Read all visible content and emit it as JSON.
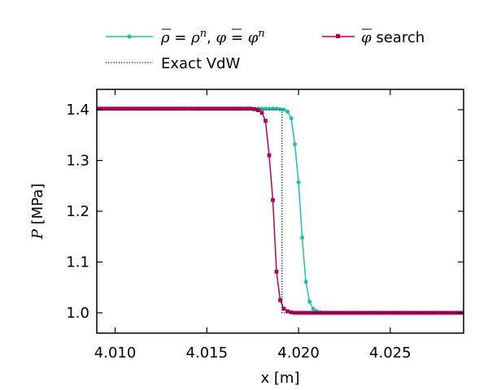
{
  "chart_data": {
    "type": "line",
    "title": "",
    "xlabel": "x [m]",
    "ylabel_symbol": "P",
    "ylabel_unit": "[MPa]",
    "xlim": [
      4.009,
      4.029
    ],
    "ylim": [
      0.96,
      1.44
    ],
    "x_ticks": [
      4.01,
      4.015,
      4.02,
      4.025
    ],
    "x_tick_labels": [
      "4.010",
      "4.015",
      "4.020",
      "4.025"
    ],
    "y_ticks": [
      1.0,
      1.1,
      1.2,
      1.3,
      1.4
    ],
    "y_tick_labels": [
      "1.0",
      "1.1",
      "1.2",
      "1.3",
      "1.4"
    ],
    "grid": false,
    "legend_position": "top",
    "series": [
      {
        "name": "ρ̄ = ρⁿ, φ̄ = φⁿ",
        "legend": {
          "rho_bar": "ρ",
          "rho_rhs": "ρ",
          "phi_bar": "φ",
          "phi_rhs": "φ",
          "sup": "n",
          "eq": " = ",
          "sep": ",  "
        },
        "color": "#1fbfb0",
        "marker": "circle",
        "x": [
          4.009,
          4.0092,
          4.0094,
          4.0096,
          4.0098,
          4.01,
          4.0102,
          4.0104,
          4.0106,
          4.0108,
          4.011,
          4.0112,
          4.0114,
          4.0116,
          4.0118,
          4.012,
          4.0122,
          4.0124,
          4.0126,
          4.0128,
          4.013,
          4.0132,
          4.0134,
          4.0136,
          4.0138,
          4.014,
          4.0142,
          4.0144,
          4.0146,
          4.0148,
          4.015,
          4.0152,
          4.0154,
          4.0156,
          4.0158,
          4.016,
          4.0162,
          4.0164,
          4.0166,
          4.0168,
          4.017,
          4.0172,
          4.0174,
          4.0176,
          4.0178,
          4.018,
          4.0182,
          4.0184,
          4.0186,
          4.0188,
          4.019,
          4.0192,
          4.0194,
          4.0196,
          4.0198,
          4.02,
          4.0202,
          4.0204,
          4.0206,
          4.0208,
          4.021,
          4.0212,
          4.0214,
          4.0216,
          4.0218,
          4.022,
          4.0222,
          4.0224,
          4.0226,
          4.0228,
          4.023,
          4.0232,
          4.0234,
          4.0236,
          4.0238,
          4.024,
          4.0242,
          4.0244,
          4.0246,
          4.0248,
          4.025,
          4.0252,
          4.0254,
          4.0256,
          4.0258,
          4.026,
          4.0262,
          4.0264,
          4.0266,
          4.0268,
          4.027,
          4.0272,
          4.0274,
          4.0276,
          4.0278,
          4.028,
          4.0282,
          4.0284,
          4.0286,
          4.0288,
          4.029
        ],
        "y": [
          1.402,
          1.402,
          1.402,
          1.402,
          1.402,
          1.402,
          1.402,
          1.402,
          1.402,
          1.402,
          1.402,
          1.402,
          1.402,
          1.402,
          1.402,
          1.402,
          1.402,
          1.402,
          1.402,
          1.402,
          1.402,
          1.402,
          1.402,
          1.402,
          1.402,
          1.402,
          1.402,
          1.402,
          1.402,
          1.402,
          1.402,
          1.402,
          1.402,
          1.402,
          1.402,
          1.402,
          1.402,
          1.402,
          1.402,
          1.402,
          1.402,
          1.402,
          1.402,
          1.402,
          1.402,
          1.402,
          1.402,
          1.402,
          1.402,
          1.402,
          1.401,
          1.4,
          1.396,
          1.383,
          1.332,
          1.257,
          1.148,
          1.061,
          1.022,
          1.008,
          1.003,
          1.001,
          1.0,
          1.0,
          1.0,
          1.0,
          1.0,
          1.0,
          1.0,
          1.0,
          1.0,
          1.0,
          1.0,
          1.0,
          1.0,
          1.0,
          1.0,
          1.0,
          1.0,
          1.0,
          1.0,
          1.0,
          1.0,
          1.0,
          1.0,
          1.0,
          1.0,
          1.0,
          1.0,
          1.0,
          1.0,
          1.0,
          1.0,
          1.0,
          1.0,
          1.0,
          1.0,
          1.0,
          1.0,
          1.0,
          1.0
        ]
      },
      {
        "name": "φ̄ search",
        "legend": {
          "phi_bar": "φ",
          "text": " search"
        },
        "color": "#b5005f",
        "marker": "square",
        "x": [
          4.009,
          4.0092,
          4.0094,
          4.0096,
          4.0098,
          4.01,
          4.0102,
          4.0104,
          4.0106,
          4.0108,
          4.011,
          4.0112,
          4.0114,
          4.0116,
          4.0118,
          4.012,
          4.0122,
          4.0124,
          4.0126,
          4.0128,
          4.013,
          4.0132,
          4.0134,
          4.0136,
          4.0138,
          4.014,
          4.0142,
          4.0144,
          4.0146,
          4.0148,
          4.015,
          4.0152,
          4.0154,
          4.0156,
          4.0158,
          4.016,
          4.0162,
          4.0164,
          4.0166,
          4.0168,
          4.017,
          4.0172,
          4.0174,
          4.0176,
          4.0178,
          4.018,
          4.0182,
          4.0184,
          4.0186,
          4.0188,
          4.019,
          4.0192,
          4.0194,
          4.0196,
          4.0198,
          4.02,
          4.0202,
          4.0204,
          4.0206,
          4.0208,
          4.021,
          4.0212,
          4.0214,
          4.0216,
          4.0218,
          4.022,
          4.0222,
          4.0224,
          4.0226,
          4.0228,
          4.023,
          4.0232,
          4.0234,
          4.0236,
          4.0238,
          4.024,
          4.0242,
          4.0244,
          4.0246,
          4.0248,
          4.025,
          4.0252,
          4.0254,
          4.0256,
          4.0258,
          4.026,
          4.0262,
          4.0264,
          4.0266,
          4.0268,
          4.027,
          4.0272,
          4.0274,
          4.0276,
          4.0278,
          4.028,
          4.0282,
          4.0284,
          4.0286,
          4.0288,
          4.029
        ],
        "y": [
          1.402,
          1.402,
          1.402,
          1.402,
          1.402,
          1.402,
          1.402,
          1.402,
          1.402,
          1.402,
          1.402,
          1.402,
          1.402,
          1.402,
          1.402,
          1.402,
          1.402,
          1.402,
          1.402,
          1.402,
          1.402,
          1.402,
          1.402,
          1.402,
          1.402,
          1.402,
          1.402,
          1.402,
          1.402,
          1.402,
          1.402,
          1.402,
          1.402,
          1.402,
          1.402,
          1.402,
          1.402,
          1.402,
          1.402,
          1.402,
          1.402,
          1.402,
          1.402,
          1.401,
          1.399,
          1.394,
          1.378,
          1.31,
          1.222,
          1.081,
          1.025,
          1.008,
          1.003,
          1.001,
          1.0,
          1.0,
          1.0,
          1.0,
          1.0,
          1.0,
          1.0,
          1.0,
          1.0,
          1.0,
          1.0,
          1.0,
          1.0,
          1.0,
          1.0,
          1.0,
          1.0,
          1.0,
          1.0,
          1.0,
          1.0,
          1.0,
          1.0,
          1.0,
          1.0,
          1.0,
          1.0,
          1.0,
          1.0,
          1.0,
          1.0,
          1.0,
          1.0,
          1.0,
          1.0,
          1.0,
          1.0,
          1.0,
          1.0,
          1.0,
          1.0,
          1.0,
          1.0,
          1.0,
          1.0,
          1.0,
          1.0
        ]
      },
      {
        "name": "Exact VdW",
        "color": "#000000",
        "marker": "none",
        "dash": "dotted",
        "x": [
          4.009,
          4.0191,
          4.0191,
          4.029
        ],
        "y": [
          1.4,
          1.4,
          1.0,
          1.0
        ]
      }
    ]
  }
}
